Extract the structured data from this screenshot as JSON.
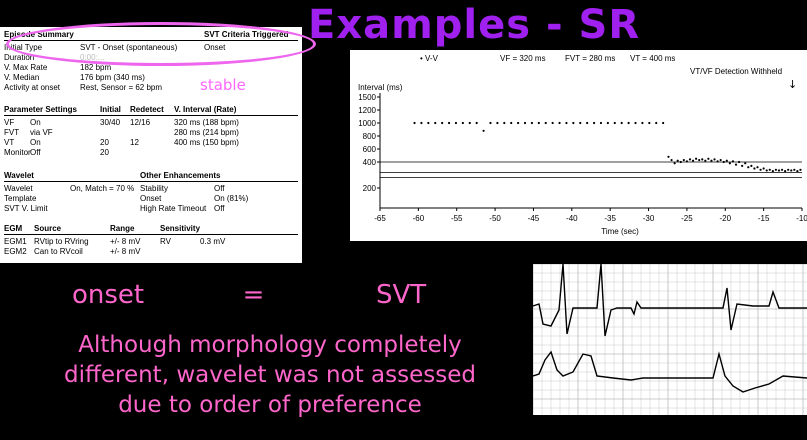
{
  "slide": {
    "title": "Examples - SR",
    "equation": {
      "left": "onset",
      "op": "=",
      "right": "SVT"
    },
    "note_lines": [
      "Although morphology completely",
      "different, wavelet was not assessed",
      "due to order of preference"
    ]
  },
  "report": {
    "episode": {
      "heading": "Episode Summary",
      "criteria_heading": "SVT Criteria Triggered",
      "rows": [
        {
          "label": "Initial Type",
          "value": "SVT - Onset (spontaneous)",
          "criteria": "Onset"
        },
        {
          "label": "Duration",
          "value": "0:00:..."
        },
        {
          "label": "V. Max Rate",
          "value": "182 bpm"
        },
        {
          "label": "V. Median",
          "value": "176 bpm (340 ms)"
        },
        {
          "label": "Activity at onset",
          "value": "Rest, Sensor = 62 bpm"
        }
      ],
      "stable_label": "stable"
    },
    "params": {
      "headers": [
        "Parameter Settings",
        "Initial",
        "Redetect",
        "V. Interval (Rate)"
      ],
      "rows": [
        [
          "VF",
          "On",
          "30/40",
          "12/16",
          "320 ms (188 bpm)"
        ],
        [
          "FVT",
          "via VF",
          "",
          "",
          "280 ms (214 bpm)"
        ],
        [
          "VT",
          "On",
          "20",
          "12",
          "400 ms (150 bpm)"
        ],
        [
          "Monitor",
          "Off",
          "20",
          "",
          ""
        ]
      ]
    },
    "wavelet": {
      "heading": "Wavelet",
      "other_heading": "Other Enhancements",
      "rows": [
        [
          "Wavelet",
          "On, Match = 70 %",
          "Stability",
          "Off"
        ],
        [
          "Template",
          "",
          "Onset",
          "On (81%)"
        ],
        [
          "SVT V. Limit",
          "",
          "High Rate Timeout",
          "Off"
        ]
      ]
    },
    "egm": {
      "headers": [
        "EGM",
        "Source",
        "Range",
        "Sensitivity"
      ],
      "rows": [
        [
          "EGM1",
          "RVtip to RVring",
          "+/- 8 mV",
          "RV",
          "0.3 mV"
        ],
        [
          "EGM2",
          "Can to RVcoil",
          "+/- 8 mV",
          "",
          ""
        ]
      ]
    }
  },
  "chart_data": {
    "type": "scatter",
    "title": "",
    "legend_marker": "• V-V",
    "zones": [
      "VF = 320 ms",
      "FVT = 280 ms",
      "VT = 400 ms"
    ],
    "annotation": "VT/VF Detection Withheld",
    "ylabel": "Interval (ms)",
    "xlabel": "Time (sec)",
    "yticks": [
      1500,
      1200,
      1000,
      800,
      600,
      400,
      200
    ],
    "xticks": [
      -65,
      -60,
      -55,
      -50,
      -45,
      -40,
      -35,
      -30,
      -25,
      -20,
      -15,
      -10
    ],
    "xlim": [
      -65,
      -10
    ],
    "ylim": [
      150,
      1500
    ],
    "zone_lines_ms": [
      400,
      320,
      280
    ],
    "series": [
      {
        "values": [
          [
            -60.5,
            1000
          ],
          [
            -59.6,
            1000
          ],
          [
            -58.7,
            1000
          ],
          [
            -57.8,
            1000
          ],
          [
            -56.9,
            1000
          ],
          [
            -56.0,
            1000
          ],
          [
            -55.1,
            1000
          ],
          [
            -54.2,
            1000
          ],
          [
            -53.3,
            1000
          ],
          [
            -52.4,
            1000
          ],
          [
            -51.5,
            880
          ],
          [
            -50.6,
            1000
          ],
          [
            -49.7,
            1000
          ],
          [
            -48.8,
            1000
          ],
          [
            -47.9,
            1000
          ],
          [
            -47.0,
            1000
          ],
          [
            -46.1,
            1000
          ],
          [
            -45.2,
            1000
          ],
          [
            -44.3,
            1000
          ],
          [
            -43.4,
            1000
          ],
          [
            -42.5,
            1000
          ],
          [
            -41.6,
            1000
          ],
          [
            -40.7,
            1000
          ],
          [
            -39.8,
            1000
          ],
          [
            -38.9,
            1000
          ],
          [
            -38.0,
            1000
          ],
          [
            -37.1,
            1000
          ],
          [
            -36.2,
            1000
          ],
          [
            -35.3,
            1000
          ],
          [
            -34.4,
            1000
          ],
          [
            -33.5,
            1000
          ],
          [
            -32.6,
            1000
          ],
          [
            -31.7,
            1000
          ],
          [
            -30.8,
            1000
          ],
          [
            -29.9,
            1000
          ],
          [
            -29.0,
            1000
          ],
          [
            -28.1,
            1000
          ],
          [
            -27.4,
            480
          ],
          [
            -27.0,
            430
          ],
          [
            -26.6,
            390
          ],
          [
            -26.2,
            420
          ],
          [
            -25.8,
            400
          ],
          [
            -25.4,
            430
          ],
          [
            -25.0,
            410
          ],
          [
            -24.6,
            440
          ],
          [
            -24.2,
            420
          ],
          [
            -23.8,
            450
          ],
          [
            -23.4,
            430
          ],
          [
            -23.0,
            440
          ],
          [
            -22.6,
            420
          ],
          [
            -22.2,
            450
          ],
          [
            -21.8,
            420
          ],
          [
            -21.4,
            440
          ],
          [
            -21.0,
            410
          ],
          [
            -20.6,
            430
          ],
          [
            -20.2,
            400
          ],
          [
            -19.8,
            420
          ],
          [
            -19.4,
            390
          ],
          [
            -19.0,
            410
          ],
          [
            -18.6,
            380
          ],
          [
            -18.2,
            400
          ],
          [
            -17.8,
            370
          ],
          [
            -17.4,
            390
          ],
          [
            -17.0,
            360
          ],
          [
            -16.6,
            370
          ],
          [
            -16.2,
            350
          ],
          [
            -15.8,
            360
          ],
          [
            -15.4,
            340
          ],
          [
            -15.0,
            350
          ],
          [
            -14.6,
            335
          ],
          [
            -14.2,
            340
          ],
          [
            -13.8,
            330
          ],
          [
            -13.4,
            340
          ],
          [
            -13.0,
            335
          ],
          [
            -12.6,
            340
          ],
          [
            -12.2,
            330
          ],
          [
            -11.8,
            340
          ],
          [
            -11.4,
            335
          ],
          [
            -11.0,
            340
          ],
          [
            -10.6,
            330
          ],
          [
            -10.2,
            340
          ]
        ]
      }
    ]
  },
  "ecg": {
    "traces": 2
  }
}
